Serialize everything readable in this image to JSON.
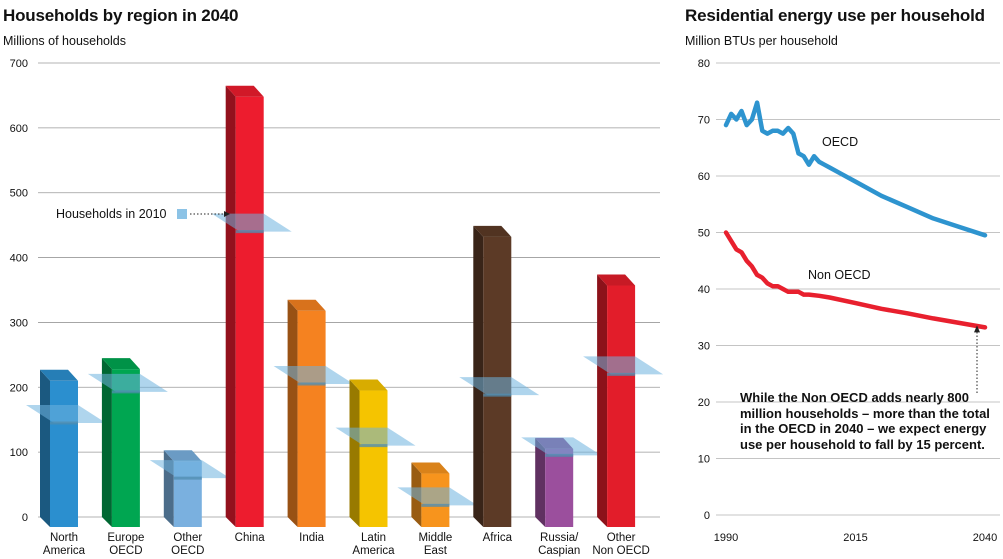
{
  "chart_data": [
    {
      "type": "bar",
      "title": "Households by region in 2040",
      "ylabel": "Millions of households",
      "ylim": [
        0,
        700
      ],
      "yticks": [
        0,
        100,
        200,
        300,
        400,
        500,
        600,
        700
      ],
      "categories": [
        [
          "North",
          "America"
        ],
        [
          "Europe",
          "OECD"
        ],
        [
          "Other",
          "OECD"
        ],
        [
          "China"
        ],
        [
          "India"
        ],
        [
          "Latin",
          "America"
        ],
        [
          "Middle",
          "East"
        ],
        [
          "Africa"
        ],
        [
          "Russia/",
          "Caspian"
        ],
        [
          "Other",
          "Non OECD"
        ]
      ],
      "values": [
        210,
        228,
        86,
        648,
        318,
        195,
        67,
        432,
        105,
        357
      ],
      "households_2010": [
        145,
        193,
        60,
        440,
        205,
        110,
        18,
        188,
        95,
        220
      ],
      "colors": [
        "#2b8fcf",
        "#00a651",
        "#7ab0df",
        "#ed1c2e",
        "#f58220",
        "#f5c400",
        "#f7941d",
        "#5c3a26",
        "#9b4f9d",
        "#e21d2a"
      ],
      "annotation": "Households in 2010"
    },
    {
      "type": "line",
      "title": "Residential energy use per household",
      "ylabel": "Million BTUs per household",
      "ylim": [
        0,
        80
      ],
      "yticks": [
        0,
        10,
        20,
        30,
        40,
        50,
        60,
        70,
        80
      ],
      "xticks": [
        1990,
        2015,
        2040
      ],
      "series": [
        {
          "name": "OECD",
          "color": "#2e94cf",
          "x": [
            1990,
            1991,
            1992,
            1993,
            1994,
            1995,
            1996,
            1997,
            1998,
            1999,
            2000,
            2001,
            2002,
            2003,
            2004,
            2005,
            2006,
            2007,
            2008,
            2009,
            2010,
            2012,
            2015,
            2020,
            2025,
            2030,
            2035,
            2040
          ],
          "y": [
            69,
            71,
            70,
            71.5,
            69,
            70,
            73,
            68,
            67.5,
            68,
            68,
            67.5,
            68.5,
            67.5,
            64,
            63.5,
            62,
            63.5,
            62.5,
            62,
            61.5,
            60.5,
            59,
            56.5,
            54.5,
            52.5,
            51,
            49.5
          ]
        },
        {
          "name": "Non OECD",
          "color": "#e8202e",
          "x": [
            1990,
            1991,
            1992,
            1993,
            1994,
            1995,
            1996,
            1997,
            1998,
            1999,
            2000,
            2001,
            2002,
            2003,
            2004,
            2005,
            2006,
            2008,
            2010,
            2015,
            2020,
            2025,
            2030,
            2035,
            2040
          ],
          "y": [
            50,
            48.5,
            47,
            46.5,
            45,
            44,
            42.5,
            42,
            41,
            40.5,
            40.5,
            40,
            39.5,
            39.5,
            39.5,
            39,
            39,
            38.8,
            38.5,
            37.5,
            36.5,
            35.7,
            34.8,
            34,
            33.2
          ]
        }
      ]
    }
  ],
  "note": "While the Non OECD adds nearly 800 million households – more than the total in the OECD in 2040 – we expect energy use per household to fall by 15 percent."
}
